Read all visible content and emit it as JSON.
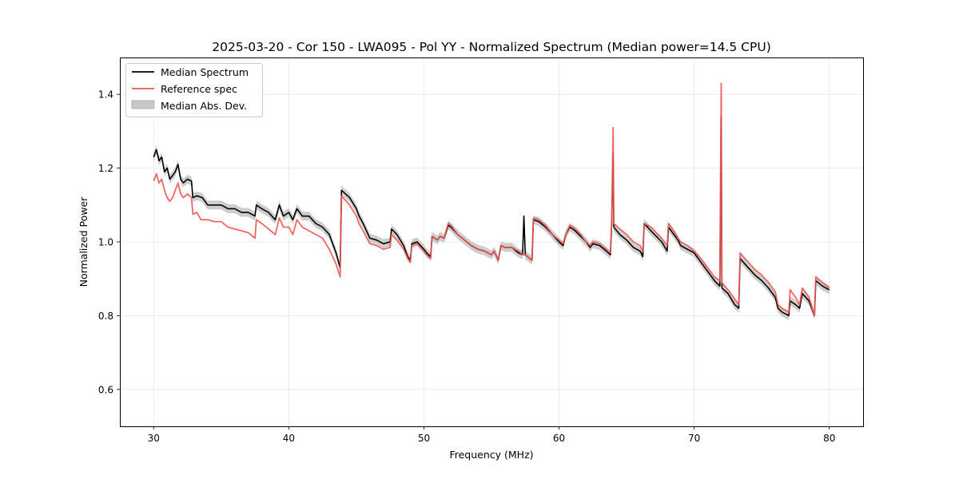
{
  "chart_data": {
    "type": "line",
    "title": "2025-03-20 - Cor 150 - LWA095 - Pol YY - Normalized Spectrum (Median power=14.5 CPU)",
    "xlabel": "Frequency (MHz)",
    "ylabel": "Normalized Power",
    "xlim": [
      27.5,
      82.5
    ],
    "ylim": [
      0.5,
      1.5
    ],
    "xticks": [
      30,
      40,
      50,
      60,
      70,
      80
    ],
    "yticks": [
      0.6,
      0.8,
      1.0,
      1.2,
      1.4
    ],
    "xtick_labels": [
      "30",
      "40",
      "50",
      "60",
      "70",
      "80"
    ],
    "ytick_labels": [
      "0.6",
      "0.8",
      "1.0",
      "1.2",
      "1.4"
    ],
    "grid": true,
    "legend_position": "top-left",
    "legend": [
      "Median Spectrum",
      "Reference spec",
      "Median Abs. Dev."
    ],
    "colors": {
      "median": "#000000",
      "reference": "#ee5555",
      "mad": "#c8c8c8",
      "overlap": "#7a0000"
    },
    "series": [
      {
        "name": "Median Spectrum",
        "points": [
          [
            30.0,
            1.23
          ],
          [
            30.2,
            1.25
          ],
          [
            30.4,
            1.22
          ],
          [
            30.6,
            1.23
          ],
          [
            30.8,
            1.19
          ],
          [
            31.0,
            1.2
          ],
          [
            31.2,
            1.17
          ],
          [
            31.4,
            1.18
          ],
          [
            31.6,
            1.19
          ],
          [
            31.8,
            1.21
          ],
          [
            32.0,
            1.17
          ],
          [
            32.2,
            1.16
          ],
          [
            32.5,
            1.17
          ],
          [
            32.8,
            1.165
          ],
          [
            32.9,
            1.12
          ],
          [
            33.2,
            1.125
          ],
          [
            33.6,
            1.12
          ],
          [
            34.0,
            1.1
          ],
          [
            34.5,
            1.1
          ],
          [
            35.0,
            1.1
          ],
          [
            35.5,
            1.09
          ],
          [
            36.0,
            1.09
          ],
          [
            36.5,
            1.08
          ],
          [
            37.0,
            1.08
          ],
          [
            37.5,
            1.07
          ],
          [
            37.6,
            1.1
          ],
          [
            38.0,
            1.09
          ],
          [
            38.5,
            1.08
          ],
          [
            39.0,
            1.06
          ],
          [
            39.3,
            1.1
          ],
          [
            39.6,
            1.07
          ],
          [
            40.0,
            1.08
          ],
          [
            40.3,
            1.06
          ],
          [
            40.6,
            1.09
          ],
          [
            41.0,
            1.07
          ],
          [
            41.5,
            1.07
          ],
          [
            42.0,
            1.05
          ],
          [
            42.5,
            1.04
          ],
          [
            43.0,
            1.02
          ],
          [
            43.5,
            0.97
          ],
          [
            43.8,
            0.93
          ],
          [
            43.9,
            1.14
          ],
          [
            44.5,
            1.12
          ],
          [
            45.0,
            1.09
          ],
          [
            45.2,
            1.07
          ],
          [
            45.5,
            1.05
          ],
          [
            46.0,
            1.01
          ],
          [
            46.5,
            1.005
          ],
          [
            47.0,
            0.995
          ],
          [
            47.5,
            1.0
          ],
          [
            47.6,
            1.035
          ],
          [
            48.0,
            1.02
          ],
          [
            48.5,
            0.99
          ],
          [
            48.8,
            0.96
          ],
          [
            49.0,
            0.95
          ],
          [
            49.1,
            0.995
          ],
          [
            49.5,
            1.0
          ],
          [
            50.0,
            0.98
          ],
          [
            50.2,
            0.97
          ],
          [
            50.5,
            0.96
          ],
          [
            50.6,
            1.015
          ],
          [
            51.0,
            1.005
          ],
          [
            51.2,
            1.015
          ],
          [
            51.5,
            1.01
          ],
          [
            51.8,
            1.045
          ],
          [
            52.0,
            1.04
          ],
          [
            52.5,
            1.02
          ],
          [
            53.0,
            1.005
          ],
          [
            53.5,
            0.99
          ],
          [
            54.0,
            0.98
          ],
          [
            54.5,
            0.975
          ],
          [
            55.0,
            0.965
          ],
          [
            55.2,
            0.975
          ],
          [
            55.5,
            0.95
          ],
          [
            55.7,
            0.99
          ],
          [
            56.0,
            0.985
          ],
          [
            56.5,
            0.985
          ],
          [
            57.0,
            0.97
          ],
          [
            57.3,
            0.965
          ],
          [
            57.4,
            1.07
          ],
          [
            57.5,
            0.965
          ],
          [
            58.0,
            0.95
          ],
          [
            58.1,
            1.06
          ],
          [
            58.5,
            1.055
          ],
          [
            59.0,
            1.04
          ],
          [
            59.5,
            1.02
          ],
          [
            60.0,
            1.0
          ],
          [
            60.3,
            0.99
          ],
          [
            60.5,
            1.02
          ],
          [
            60.8,
            1.04
          ],
          [
            61.2,
            1.03
          ],
          [
            61.6,
            1.015
          ],
          [
            62.0,
            1.0
          ],
          [
            62.3,
            0.985
          ],
          [
            62.5,
            0.995
          ],
          [
            63.0,
            0.99
          ],
          [
            63.5,
            0.975
          ],
          [
            63.8,
            0.965
          ],
          [
            63.9,
            1.05
          ],
          [
            64.0,
            1.24
          ],
          [
            64.05,
            1.04
          ],
          [
            64.5,
            1.02
          ],
          [
            65.0,
            1.005
          ],
          [
            65.5,
            0.985
          ],
          [
            66.0,
            0.975
          ],
          [
            66.2,
            0.96
          ],
          [
            66.3,
            1.05
          ],
          [
            66.8,
            1.03
          ],
          [
            67.2,
            1.015
          ],
          [
            67.6,
            1.0
          ],
          [
            68.0,
            0.975
          ],
          [
            68.1,
            1.04
          ],
          [
            68.5,
            1.02
          ],
          [
            68.8,
            1.005
          ],
          [
            69.0,
            0.99
          ],
          [
            69.5,
            0.98
          ],
          [
            70.0,
            0.97
          ],
          [
            70.5,
            0.945
          ],
          [
            71.0,
            0.92
          ],
          [
            71.5,
            0.895
          ],
          [
            71.9,
            0.88
          ],
          [
            72.0,
            1.34
          ],
          [
            72.05,
            0.875
          ],
          [
            72.5,
            0.86
          ],
          [
            73.0,
            0.83
          ],
          [
            73.3,
            0.82
          ],
          [
            73.4,
            0.955
          ],
          [
            74.0,
            0.93
          ],
          [
            74.5,
            0.91
          ],
          [
            75.0,
            0.895
          ],
          [
            75.5,
            0.875
          ],
          [
            76.0,
            0.85
          ],
          [
            76.2,
            0.82
          ],
          [
            76.5,
            0.81
          ],
          [
            77.0,
            0.8
          ],
          [
            77.1,
            0.84
          ],
          [
            77.5,
            0.83
          ],
          [
            77.8,
            0.82
          ],
          [
            78.0,
            0.86
          ],
          [
            78.5,
            0.84
          ],
          [
            78.9,
            0.8
          ],
          [
            79.0,
            0.895
          ],
          [
            79.5,
            0.88
          ],
          [
            80.0,
            0.87
          ]
        ]
      },
      {
        "name": "Reference spec",
        "points": [
          [
            30.0,
            1.165
          ],
          [
            30.2,
            1.185
          ],
          [
            30.4,
            1.16
          ],
          [
            30.6,
            1.17
          ],
          [
            30.8,
            1.14
          ],
          [
            31.0,
            1.12
          ],
          [
            31.2,
            1.11
          ],
          [
            31.4,
            1.12
          ],
          [
            31.6,
            1.14
          ],
          [
            31.8,
            1.16
          ],
          [
            32.0,
            1.13
          ],
          [
            32.2,
            1.12
          ],
          [
            32.5,
            1.13
          ],
          [
            32.8,
            1.12
          ],
          [
            32.9,
            1.075
          ],
          [
            33.2,
            1.08
          ],
          [
            33.5,
            1.06
          ],
          [
            34.0,
            1.06
          ],
          [
            34.5,
            1.055
          ],
          [
            35.0,
            1.055
          ],
          [
            35.5,
            1.04
          ],
          [
            36.0,
            1.035
          ],
          [
            36.5,
            1.03
          ],
          [
            37.0,
            1.025
          ],
          [
            37.5,
            1.01
          ],
          [
            37.6,
            1.06
          ],
          [
            38.0,
            1.05
          ],
          [
            38.5,
            1.035
          ],
          [
            39.0,
            1.02
          ],
          [
            39.3,
            1.065
          ],
          [
            39.6,
            1.04
          ],
          [
            40.0,
            1.04
          ],
          [
            40.3,
            1.02
          ],
          [
            40.6,
            1.06
          ],
          [
            41.0,
            1.04
          ],
          [
            41.5,
            1.03
          ],
          [
            42.0,
            1.02
          ],
          [
            42.5,
            1.01
          ],
          [
            43.0,
            0.98
          ],
          [
            43.5,
            0.94
          ],
          [
            43.8,
            0.905
          ],
          [
            43.9,
            1.125
          ],
          [
            44.5,
            1.1
          ],
          [
            45.0,
            1.07
          ],
          [
            45.2,
            1.05
          ],
          [
            45.5,
            1.03
          ],
          [
            46.0,
            0.995
          ],
          [
            46.5,
            0.99
          ],
          [
            47.0,
            0.98
          ],
          [
            47.5,
            0.985
          ],
          [
            47.6,
            1.02
          ],
          [
            48.0,
            1.005
          ],
          [
            48.5,
            0.98
          ],
          [
            48.8,
            0.955
          ],
          [
            49.0,
            0.945
          ],
          [
            49.1,
            0.99
          ],
          [
            49.5,
            0.995
          ],
          [
            50.0,
            0.975
          ],
          [
            50.2,
            0.965
          ],
          [
            50.5,
            0.955
          ],
          [
            50.6,
            1.015
          ],
          [
            51.0,
            1.005
          ],
          [
            51.2,
            1.015
          ],
          [
            51.5,
            1.01
          ],
          [
            51.8,
            1.05
          ],
          [
            52.0,
            1.045
          ],
          [
            52.5,
            1.02
          ],
          [
            53.0,
            1.005
          ],
          [
            53.5,
            0.99
          ],
          [
            54.0,
            0.98
          ],
          [
            54.5,
            0.975
          ],
          [
            55.0,
            0.965
          ],
          [
            55.2,
            0.975
          ],
          [
            55.5,
            0.95
          ],
          [
            55.7,
            0.99
          ],
          [
            56.0,
            0.985
          ],
          [
            56.5,
            0.985
          ],
          [
            57.0,
            0.975
          ],
          [
            57.3,
            0.965
          ],
          [
            57.5,
            0.965
          ],
          [
            58.0,
            0.95
          ],
          [
            58.1,
            1.065
          ],
          [
            58.5,
            1.06
          ],
          [
            59.0,
            1.045
          ],
          [
            59.5,
            1.02
          ],
          [
            60.0,
            1.005
          ],
          [
            60.3,
            0.995
          ],
          [
            60.5,
            1.02
          ],
          [
            60.8,
            1.045
          ],
          [
            61.2,
            1.035
          ],
          [
            61.6,
            1.02
          ],
          [
            62.0,
            1.0
          ],
          [
            62.3,
            0.99
          ],
          [
            62.5,
            1.0
          ],
          [
            63.0,
            0.995
          ],
          [
            63.5,
            0.98
          ],
          [
            63.8,
            0.97
          ],
          [
            63.9,
            1.06
          ],
          [
            64.0,
            1.31
          ],
          [
            64.05,
            1.05
          ],
          [
            64.5,
            1.035
          ],
          [
            65.0,
            1.02
          ],
          [
            65.5,
            1.0
          ],
          [
            66.0,
            0.99
          ],
          [
            66.2,
            0.975
          ],
          [
            66.3,
            1.05
          ],
          [
            66.8,
            1.04
          ],
          [
            67.2,
            1.025
          ],
          [
            67.6,
            1.01
          ],
          [
            68.0,
            0.99
          ],
          [
            68.1,
            1.05
          ],
          [
            68.5,
            1.03
          ],
          [
            68.8,
            1.01
          ],
          [
            69.0,
            1.0
          ],
          [
            69.5,
            0.99
          ],
          [
            70.0,
            0.975
          ],
          [
            70.5,
            0.955
          ],
          [
            71.0,
            0.93
          ],
          [
            71.5,
            0.905
          ],
          [
            71.9,
            0.895
          ],
          [
            72.0,
            1.43
          ],
          [
            72.05,
            0.89
          ],
          [
            72.5,
            0.87
          ],
          [
            73.0,
            0.845
          ],
          [
            73.3,
            0.83
          ],
          [
            73.4,
            0.97
          ],
          [
            74.0,
            0.945
          ],
          [
            74.5,
            0.925
          ],
          [
            75.0,
            0.91
          ],
          [
            75.5,
            0.89
          ],
          [
            76.0,
            0.865
          ],
          [
            76.2,
            0.83
          ],
          [
            76.5,
            0.82
          ],
          [
            77.0,
            0.81
          ],
          [
            77.1,
            0.87
          ],
          [
            77.5,
            0.85
          ],
          [
            77.8,
            0.83
          ],
          [
            78.0,
            0.875
          ],
          [
            78.5,
            0.85
          ],
          [
            78.9,
            0.8
          ],
          [
            79.0,
            0.905
          ],
          [
            79.5,
            0.89
          ],
          [
            80.0,
            0.875
          ]
        ]
      },
      {
        "name": "Median Abs. Dev.",
        "band_halfwidth": 0.012
      }
    ]
  }
}
